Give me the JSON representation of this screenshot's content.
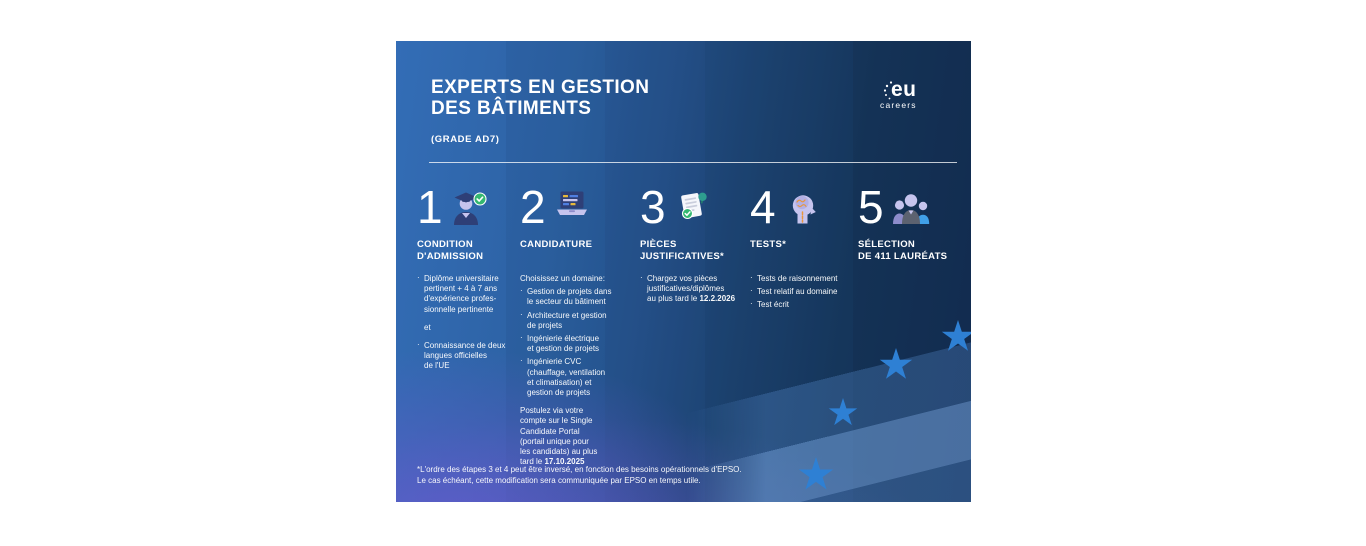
{
  "poster": {
    "title": "EXPERTS EN GESTION\nDES BÂTIMENTS",
    "grade": "(GRADE AD7)",
    "logo": {
      "eu": "eu",
      "careers": "careers"
    },
    "footnote": "*L'ordre des étapes 3 et 4 peut être inversé, en fonction des besoins opérationnels d'EPSO.\nLe cas échéant, cette modification sera communiquée par EPSO en temps utile.",
    "colors": {
      "background_left": "#336db6",
      "background_right": "#15325a",
      "purple_glow": "#7456d6",
      "star_blue": "#2e80d4",
      "check_green": "#35b871",
      "icon_lavender": "#c6c4ee",
      "icon_navy": "#2e3f77"
    },
    "steps": [
      {
        "number": "1",
        "icon": "graduate-check-icon",
        "title": "CONDITION\nD'ADMISSION",
        "items": [
          {
            "type": "bullet",
            "text": "Diplôme universitaire\npertinent + 4 à 7 ans\nd'expérience profes-\nsionnelle pertinente"
          },
          {
            "type": "text",
            "gap": true,
            "text": "et"
          },
          {
            "type": "bullet",
            "gap": true,
            "text": "Connaissance de deux\nlangues officielles\nde l'UE"
          }
        ]
      },
      {
        "number": "2",
        "icon": "laptop-application-icon",
        "title": "CANDIDATURE",
        "items": [
          {
            "type": "para",
            "text": "Choisissez un domaine:"
          },
          {
            "type": "bullet",
            "text": "Gestion de projets dans\nle secteur du bâtiment"
          },
          {
            "type": "bullet",
            "text": "Architecture et gestion\nde projets"
          },
          {
            "type": "bullet",
            "text": "Ingénierie électrique\net gestion de projets"
          },
          {
            "type": "bullet",
            "text": "Ingénierie CVC\n(chauffage, ventilation\net climatisation) et\ngestion de projets"
          },
          {
            "type": "para",
            "gap": true,
            "text": "Postulez via votre\ncompte sur le Single\nCandidate Portal\n(portail unique pour\nles candidats) au plus\ntard le **17.10.2025**"
          }
        ]
      },
      {
        "number": "3",
        "icon": "document-check-icon",
        "title": "PIÈCES\nJUSTIFICATIVES*",
        "items": [
          {
            "type": "bullet",
            "text": "Chargez vos pièces\njustificatives/diplômes\nau plus tard le **12.2.2026**"
          }
        ]
      },
      {
        "number": "4",
        "icon": "head-brain-icon",
        "title": "TESTS*",
        "items": [
          {
            "type": "bullet",
            "text": "Tests de raisonnement"
          },
          {
            "type": "bullet",
            "text": "Test relatif au domaine"
          },
          {
            "type": "bullet",
            "text": "Test écrit"
          }
        ]
      },
      {
        "number": "5",
        "icon": "laureates-group-icon",
        "title": "SÉLECTION\nDE 411 LAURÉATS",
        "items": []
      }
    ]
  }
}
